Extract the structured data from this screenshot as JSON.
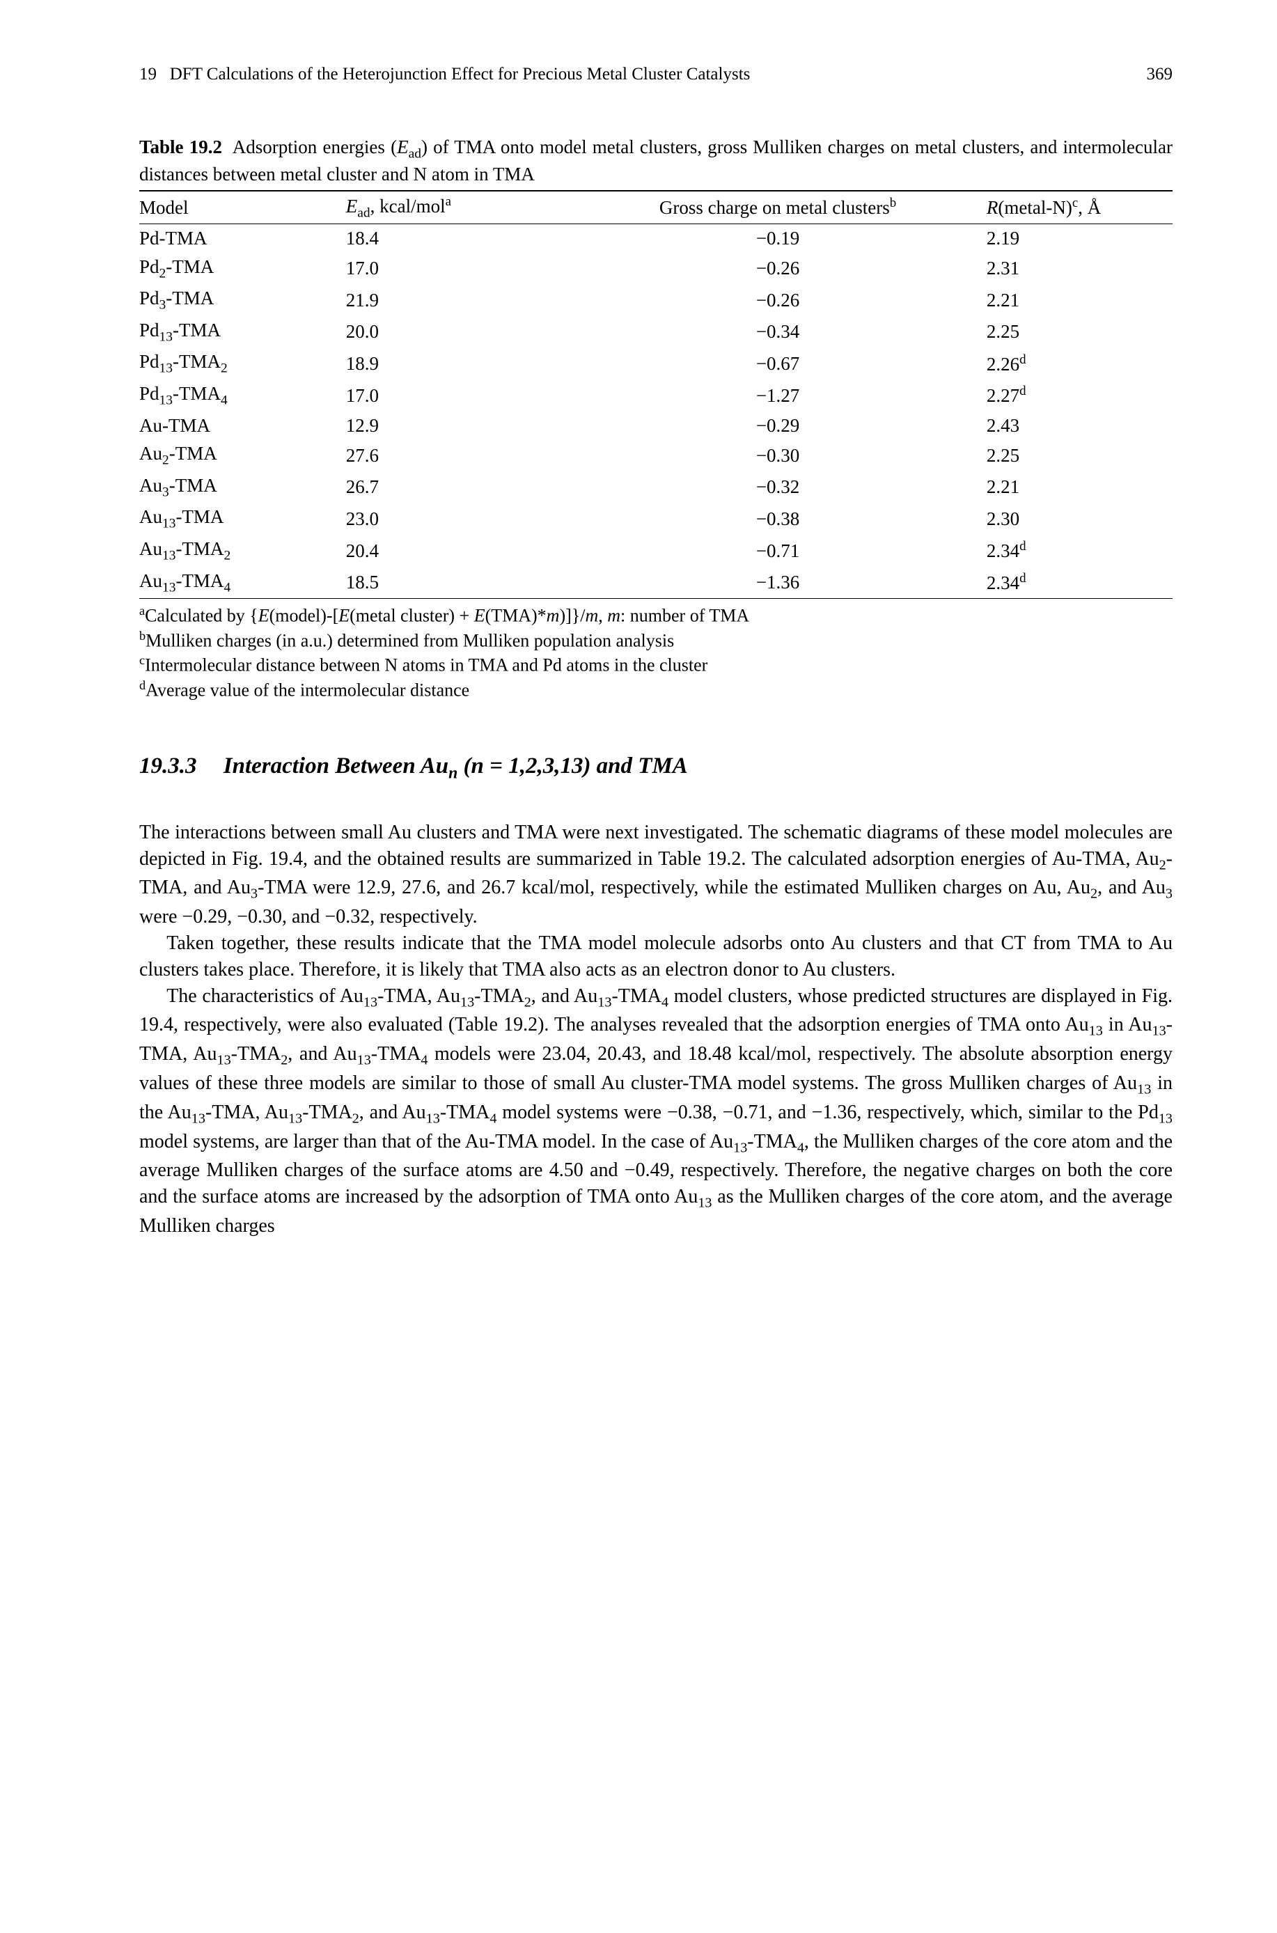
{
  "running_head": {
    "left_chapter_num": "19",
    "left_text": "DFT Calculations of the Heterojunction Effect for Precious Metal Cluster Catalysts",
    "page_number": "369"
  },
  "table": {
    "label_bold": "Table 19.2",
    "caption_rest_1": "Adsorption energies (",
    "caption_symbol": "E",
    "caption_sub": "ad",
    "caption_rest_2": ") of TMA onto model metal clusters, gross Mulliken charges on metal clusters, and intermolecular distances between metal cluster and N atom in TMA",
    "headers": {
      "c1": "Model",
      "c2_pre": "E",
      "c2_sub": "ad",
      "c2_post": ", kcal/mol",
      "c2_sup": "a",
      "c3": "Gross charge on metal clusters",
      "c3_sup": "b",
      "c4_pre": "R",
      "c4_mid": "(metal-N)",
      "c4_sup": "c",
      "c4_post": ", Å"
    },
    "rows": [
      {
        "model_pre": "Pd-TMA",
        "model_sub": "",
        "model_post": "",
        "ead": "18.4",
        "charge": "−0.19",
        "r": "2.19",
        "r_sup": ""
      },
      {
        "model_pre": "Pd",
        "model_sub": "2",
        "model_post": "-TMA",
        "ead": "17.0",
        "charge": "−0.26",
        "r": "2.31",
        "r_sup": ""
      },
      {
        "model_pre": "Pd",
        "model_sub": "3",
        "model_post": "-TMA",
        "ead": "21.9",
        "charge": "−0.26",
        "r": "2.21",
        "r_sup": ""
      },
      {
        "model_pre": "Pd",
        "model_sub": "13",
        "model_post": "-TMA",
        "ead": "20.0",
        "charge": "−0.34",
        "r": "2.25",
        "r_sup": ""
      },
      {
        "model_pre": "Pd",
        "model_sub": "13",
        "model_post": "-TMA",
        "model_sub2": "2",
        "ead": "18.9",
        "charge": "−0.67",
        "r": "2.26",
        "r_sup": "d"
      },
      {
        "model_pre": "Pd",
        "model_sub": "13",
        "model_post": "-TMA",
        "model_sub2": "4",
        "ead": "17.0",
        "charge": "−1.27",
        "r": "2.27",
        "r_sup": "d"
      },
      {
        "model_pre": "Au-TMA",
        "model_sub": "",
        "model_post": "",
        "ead": "12.9",
        "charge": "−0.29",
        "r": "2.43",
        "r_sup": ""
      },
      {
        "model_pre": "Au",
        "model_sub": "2",
        "model_post": "-TMA",
        "ead": "27.6",
        "charge": "−0.30",
        "r": "2.25",
        "r_sup": ""
      },
      {
        "model_pre": "Au",
        "model_sub": "3",
        "model_post": "-TMA",
        "ead": "26.7",
        "charge": "−0.32",
        "r": "2.21",
        "r_sup": ""
      },
      {
        "model_pre": "Au",
        "model_sub": "13",
        "model_post": "-TMA",
        "ead": "23.0",
        "charge": "−0.38",
        "r": "2.30",
        "r_sup": ""
      },
      {
        "model_pre": "Au",
        "model_sub": "13",
        "model_post": "-TMA",
        "model_sub2": "2",
        "ead": "20.4",
        "charge": "−0.71",
        "r": "2.34",
        "r_sup": "d"
      },
      {
        "model_pre": "Au",
        "model_sub": "13",
        "model_post": "-TMA",
        "model_sub2": "4",
        "ead": "18.5",
        "charge": "−1.36",
        "r": "2.34",
        "r_sup": "d"
      }
    ],
    "footnotes": {
      "a_sup": "a",
      "a_pre": "Calculated by {",
      "a_e1": "E",
      "a_mid1": "(model)-[",
      "a_e2": "E",
      "a_mid2": "(metal cluster) + ",
      "a_e3": "E",
      "a_mid3": "(TMA)*",
      "a_m1": "m",
      "a_mid4": ")]}/",
      "a_m2": "m",
      "a_mid5": ", ",
      "a_m3": "m",
      "a_post": ": number of TMA",
      "b_sup": "b",
      "b": "Mulliken charges (in a.u.) determined from Mulliken population analysis",
      "c_sup": "c",
      "c": "Intermolecular distance between N atoms in TMA and Pd atoms in the cluster",
      "d_sup": "d",
      "d": "Average value of the intermolecular distance"
    }
  },
  "section": {
    "number": "19.3.3",
    "title_pre": "Interaction Between Au",
    "title_sub": "n",
    "title_post": " (n = 1,2,3,13) and TMA"
  },
  "para1": {
    "t1": "The interactions between small Au clusters and TMA were next investigated. The schematic diagrams of these model molecules are depicted in Fig. 19.4, and the obtained results are summarized in Table 19.2. The calculated adsorption energies of Au-TMA, Au",
    "s1": "2",
    "t2": "-TMA, and Au",
    "s2": "3",
    "t3": "-TMA were 12.9, 27.6, and 26.7 kcal/mol, respectively, while the estimated Mulliken charges on Au, Au",
    "s3": "2",
    "t4": ", and Au",
    "s4": "3",
    "t5": " were −0.29, −0.30, and −0.32, respectively."
  },
  "para2": "Taken together, these results indicate that the TMA model molecule adsorbs onto Au clusters and that CT from TMA to Au clusters takes place. Therefore, it is likely that TMA also acts as an electron donor to Au clusters.",
  "para3": {
    "t1": "The characteristics of Au",
    "s1": "13",
    "t2": "-TMA, Au",
    "s2": "13",
    "t3": "-TMA",
    "s3": "2",
    "t4": ", and Au",
    "s4": "13",
    "t5": "-TMA",
    "s5": "4",
    "t6": " model clusters, whose predicted structures are displayed in Fig. 19.4, respectively, were also evaluated (Table 19.2). The analyses revealed that the adsorption energies of TMA onto Au",
    "s6": "13",
    "t7": " in Au",
    "s7": "13",
    "t8": "-TMA, Au",
    "s8": "13",
    "t9": "-TMA",
    "s9": "2",
    "t10": ", and Au",
    "s10": "13",
    "t11": "-TMA",
    "s11": "4",
    "t12": " models were 23.04, 20.43, and 18.48 kcal/mol, respectively. The absolute absorption energy values of these three models are similar to those of small Au cluster-TMA model systems. The gross Mulliken charges of Au",
    "s12": "13",
    "t13": " in the Au",
    "s13": "13",
    "t14": "-TMA, Au",
    "s14": "13",
    "t15": "-TMA",
    "s15": "2",
    "t16": ", and Au",
    "s16": "13",
    "t17": "-TMA",
    "s17": "4",
    "t18": " model systems were −0.38, −0.71, and −1.36, respectively, which, similar to the Pd",
    "s18": "13",
    "t19": " model systems, are larger than that of the Au-TMA model. In the case of Au",
    "s19": "13",
    "t20": "-TMA",
    "s20": "4",
    "t21": ", the Mulliken charges of the core atom and the average Mulliken charges of the surface atoms are 4.50 and −0.49, respectively. Therefore, the negative charges on both the core and the surface atoms are increased by the adsorption of TMA onto Au",
    "s21": "13",
    "t22": " as the Mulliken charges of the core atom, and the average Mulliken charges"
  }
}
